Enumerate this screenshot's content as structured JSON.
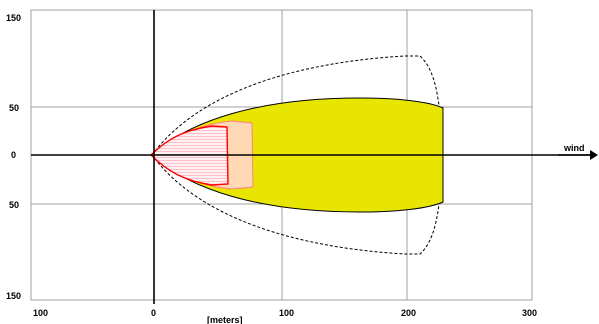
{
  "diagram": {
    "y_tick_labels": [
      "150",
      "50",
      "0",
      "50",
      "150"
    ],
    "x_tick_labels": [
      "100",
      "0",
      "100",
      "200",
      "300"
    ],
    "x_unit_label": "[meters]",
    "wind_label": "wind",
    "colors": {
      "outer_zone_fill": "#e8e600",
      "middle_zone_fill": "#ffd9b3",
      "inner_zone_fill": "#ffe4e8",
      "inner_zone_stroke": "#ff0000",
      "middle_zone_stroke": "#ff7f7f",
      "grid": "#a0a0a0",
      "axes": "#000000"
    }
  }
}
